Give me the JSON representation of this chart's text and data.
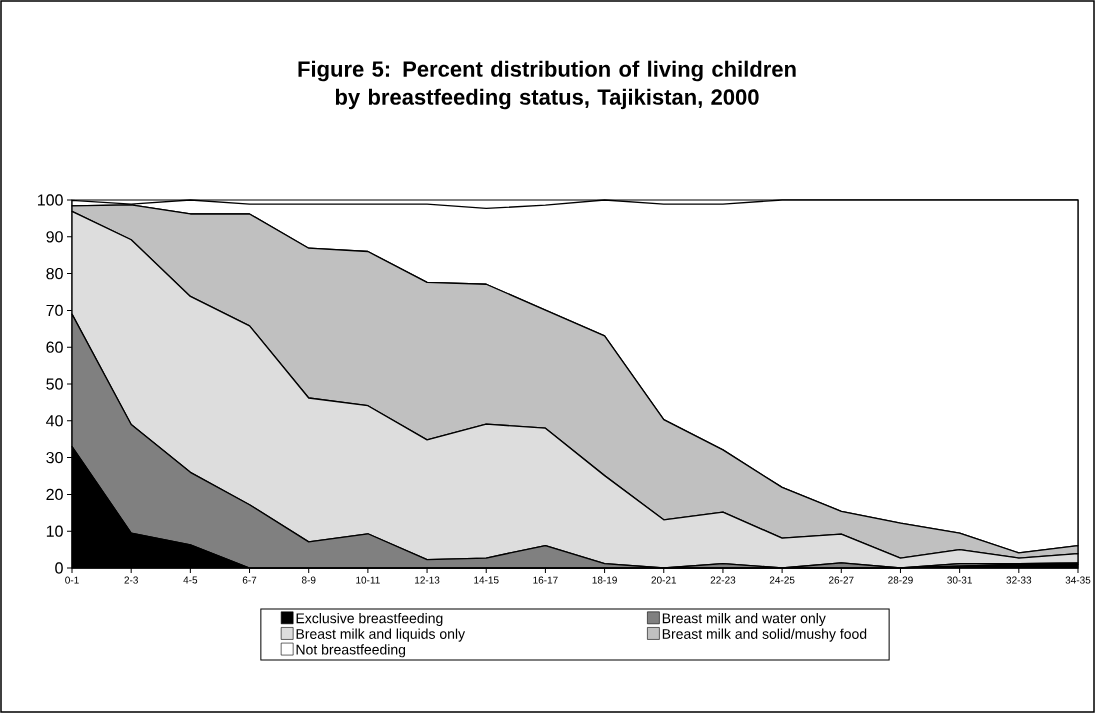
{
  "chart_data": {
    "type": "area",
    "title": "Figure 5: Percent distribution of living children by breastfeeding status, Tajikistan, 2000",
    "categories": [
      "0-1",
      "2-3",
      "4-5",
      "6-7",
      "8-9",
      "10-11",
      "12-13",
      "14-15",
      "16-17",
      "18-19",
      "20-21",
      "22-23",
      "24-25",
      "26-27",
      "28-29",
      "30-31",
      "32-33",
      "34-35"
    ],
    "stacked": true,
    "ylim": [
      0,
      100
    ],
    "yticks": [
      0,
      10,
      20,
      30,
      40,
      50,
      60,
      70,
      80,
      90,
      100
    ],
    "legend": "bottom",
    "series": [
      {
        "name": "Exclusive breastfeeding",
        "color": "#000000",
        "values": [
          33,
          9.5,
          6.3,
          0,
          0,
          0,
          0,
          0,
          0,
          0,
          0,
          0,
          0,
          0,
          0,
          0.5,
          1,
          1
        ]
      },
      {
        "name": "Breast milk and water only",
        "color": "#808080",
        "values": [
          36,
          29.5,
          19.7,
          17.2,
          7.1,
          9.3,
          2.3,
          2.7,
          6.1,
          1.2,
          0,
          1.2,
          0,
          1.4,
          0,
          0.7,
          0.2,
          0.4
        ]
      },
      {
        "name": "Breast milk and liquids only",
        "color": "#dddddd",
        "values": [
          27.9,
          50.2,
          47.8,
          48.6,
          39.1,
          34.8,
          32.5,
          36.4,
          31.9,
          23.9,
          13.1,
          14,
          8.1,
          7.8,
          2.7,
          3.8,
          1.5,
          2.5
        ]
      },
      {
        "name": "Breast milk and solid/mushy food",
        "color": "#c0c0c0",
        "values": [
          1.5,
          9.5,
          22.4,
          30.4,
          40.7,
          41.9,
          42.8,
          38,
          32.1,
          38,
          27.2,
          16.9,
          13.8,
          6.2,
          9.5,
          4.5,
          1.4,
          2.2
        ]
      },
      {
        "name": "Not breastfeeding",
        "color": "#ffffff",
        "values": [
          1.5,
          0.2,
          3.8,
          2.7,
          12,
          12.9,
          21.3,
          20.6,
          28.5,
          36.9,
          58.6,
          66.8,
          78.1,
          84.6,
          87.8,
          90.5,
          95.9,
          93.9
        ]
      }
    ]
  }
}
